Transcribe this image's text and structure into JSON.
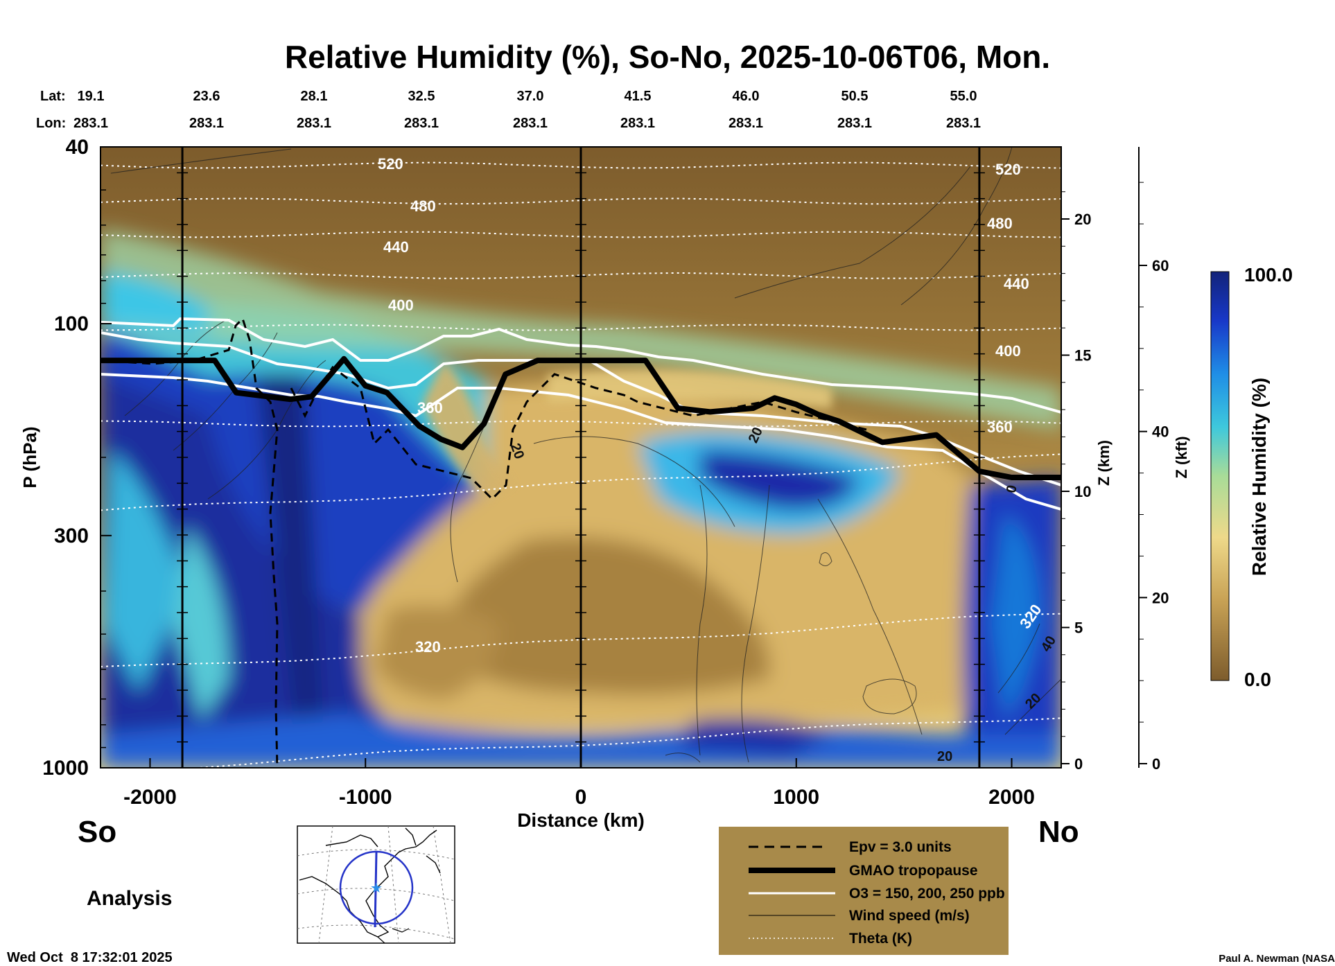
{
  "title": "Relative Humidity (%), So-No, 2025-10-06T06, Mon.",
  "lat_label": "Lat:",
  "lon_label": "Lon:",
  "latitudes": [
    "19.1",
    "23.6",
    "28.1",
    "32.5",
    "37.0",
    "41.5",
    "46.0",
    "50.5",
    "55.0"
  ],
  "longitudes": [
    "283.1",
    "283.1",
    "283.1",
    "283.1",
    "283.1",
    "283.1",
    "283.1",
    "283.1",
    "283.1"
  ],
  "y_axis_label": "P (hPa)",
  "x_axis_label": "Distance (km)",
  "z_km_label": "Z (km)",
  "z_kft_label": "Z (kft)",
  "colorbar": {
    "label": "Relative Humidity (%)",
    "max_label": "100.0",
    "min_label": "0.0"
  },
  "south_label": "So",
  "north_label": "No",
  "analysis_label": "Analysis",
  "timestamp": "Wed Oct  8 17:32:01 2025",
  "credit": "Paul A. Newman (NASA",
  "legend": [
    {
      "style": "dashed",
      "color": "#000000",
      "label": "Epv = 3.0 units"
    },
    {
      "style": "thick",
      "color": "#000000",
      "label": "GMAO tropopause"
    },
    {
      "style": "white",
      "color": "#ffffff",
      "label": "O3 = 150, 200, 250 ppb"
    },
    {
      "style": "thin",
      "color": "#000000",
      "label": "Wind speed (m/s)"
    },
    {
      "style": "dotted",
      "color": "#ffffff",
      "label": "Theta (K)"
    }
  ],
  "legend_bg": "#a88a4a",
  "chart_data": {
    "type": "heatmap",
    "variable": "Relative Humidity (%)",
    "color_range": [
      0.0,
      100.0
    ],
    "x_range": [
      -2230,
      2230
    ],
    "x_ticks": [
      "-2000",
      "-1000",
      "0",
      "1000",
      "2000"
    ],
    "x_tick_values": [
      -2000,
      -1000,
      0,
      1000,
      2000
    ],
    "p_range": [
      1000,
      40
    ],
    "p_scale": "log",
    "p_tick_values": [
      40,
      100,
      300,
      1000
    ],
    "p_ticks": [
      "40",
      "100",
      "300",
      "1000"
    ],
    "z_km_ticks": [
      "0",
      "5",
      "10",
      "15",
      "20"
    ],
    "z_km_values": [
      0,
      5,
      10,
      15,
      20
    ],
    "z_kft_ticks": [
      "0",
      "20",
      "40",
      "60"
    ],
    "z_kft_values": [
      0,
      20,
      40,
      60
    ],
    "vertical_lines_km": [
      -1850,
      0,
      1850
    ],
    "theta_labels": [
      "520",
      "480",
      "440",
      "400",
      "360",
      "320",
      "520",
      "480",
      "440",
      "400",
      "360",
      "320"
    ],
    "wind_labels": [
      "20",
      "20",
      "20",
      "40",
      "20",
      "0"
    ],
    "tropopause": {
      "x": [
        -2230,
        -1700,
        -1600,
        -1350,
        -1250,
        -1100,
        -1000,
        -900,
        -750,
        -650,
        -550,
        -450,
        -350,
        -200,
        0,
        300,
        450,
        600,
        800,
        900,
        1000,
        1100,
        1200,
        1400,
        1650,
        1850,
        2000,
        2230
      ],
      "p": [
        121,
        121,
        143,
        148,
        146,
        120,
        138,
        143,
        170,
        182,
        190,
        168,
        130,
        121,
        121,
        121,
        155,
        158,
        155,
        147,
        152,
        160,
        166,
        185,
        178,
        215,
        222,
        222
      ]
    },
    "o3_contours_p": [
      98,
      112,
      134
    ],
    "theta_levels_p": [
      44,
      53,
      63,
      78,
      102,
      168,
      230,
      520,
      880
    ]
  },
  "colors": {
    "rh_dry": "#7a5a2a",
    "rh_mid": "#e8c97a",
    "rh_cyan": "#36c6e0",
    "rh_wet": "#1a2a9a"
  }
}
